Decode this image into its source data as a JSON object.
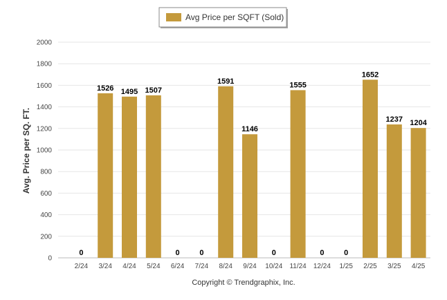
{
  "chart_data": {
    "type": "bar",
    "categories": [
      "2/24",
      "3/24",
      "4/24",
      "5/24",
      "6/24",
      "7/24",
      "8/24",
      "9/24",
      "10/24",
      "11/24",
      "12/24",
      "1/25",
      "2/25",
      "3/25",
      "4/25"
    ],
    "series": [
      {
        "name": "Avg Price per SQFT (Sold)",
        "values": [
          0,
          1526,
          1495,
          1507,
          0,
          0,
          1591,
          1146,
          0,
          1555,
          0,
          0,
          1652,
          1237,
          1204
        ],
        "color": "#c49a3c"
      }
    ],
    "ylabel": "Avg. Price per SQ. FT.",
    "ylim": [
      0,
      2000
    ],
    "yticks": [
      0,
      200,
      400,
      600,
      800,
      1000,
      1200,
      1400,
      1600,
      1800,
      2000
    ],
    "grid": true,
    "legend_position": "top-center",
    "data_labels": true
  },
  "footer": {
    "copyright": "Copyright © Trendgraphix, Inc."
  }
}
